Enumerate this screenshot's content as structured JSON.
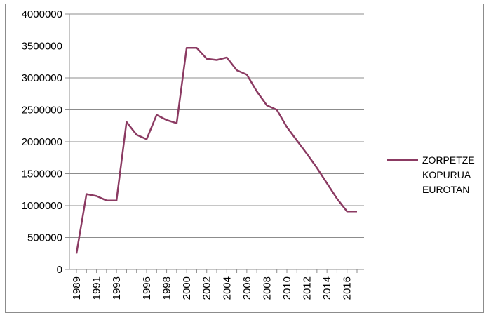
{
  "chart_data": {
    "type": "line",
    "title": "",
    "xlabel": "",
    "ylabel": "",
    "ylim": [
      0,
      4000000
    ],
    "y_ticks": [
      0,
      500000,
      1000000,
      1500000,
      2000000,
      2500000,
      3000000,
      3500000,
      4000000
    ],
    "y_tick_labels": [
      "0",
      "500000",
      "1000000",
      "1500000",
      "2000000",
      "2500000",
      "3000000",
      "3500000",
      "4000000"
    ],
    "x_tick_labels": [
      "1989",
      "1991",
      "1993",
      "1996",
      "1998",
      "2000",
      "2002",
      "2004",
      "2006",
      "2008",
      "2010",
      "2012",
      "2014",
      "2016"
    ],
    "x_tick_positions": [
      1989,
      1991,
      1993,
      1996,
      1998,
      2000,
      2002,
      2004,
      2006,
      2008,
      2010,
      2012,
      2014,
      2016
    ],
    "x_categories": [
      1989,
      1990,
      1991,
      1992,
      1993,
      1994,
      1995,
      1996,
      1997,
      1998,
      1999,
      2000,
      2001,
      2002,
      2003,
      2004,
      2005,
      2006,
      2007,
      2008,
      2009,
      2010,
      2011,
      2012,
      2013,
      2014,
      2015,
      2016,
      2017
    ],
    "grid": true,
    "legend_position": "right",
    "series": [
      {
        "name": "ZORPETZE KOPURUA EUROTAN",
        "legend_lines": [
          "ZORPETZE",
          "KOPURUA",
          "EUROTAN"
        ],
        "color": "#8b3a62",
        "x": [
          1989,
          1990,
          1991,
          1992,
          1993,
          1994,
          1995,
          1996,
          1997,
          1998,
          1999,
          2000,
          2001,
          2002,
          2003,
          2004,
          2005,
          2006,
          2007,
          2008,
          2009,
          2010,
          2011,
          2012,
          2013,
          2014,
          2015,
          2016,
          2017
        ],
        "y": [
          250000,
          1180000,
          1150000,
          1080000,
          1080000,
          2310000,
          2110000,
          2040000,
          2420000,
          2340000,
          2290000,
          3470000,
          3470000,
          3300000,
          3280000,
          3320000,
          3120000,
          3050000,
          2790000,
          2570000,
          2500000,
          2230000,
          2020000,
          1810000,
          1590000,
          1350000,
          1110000,
          910000,
          910000
        ]
      }
    ]
  }
}
